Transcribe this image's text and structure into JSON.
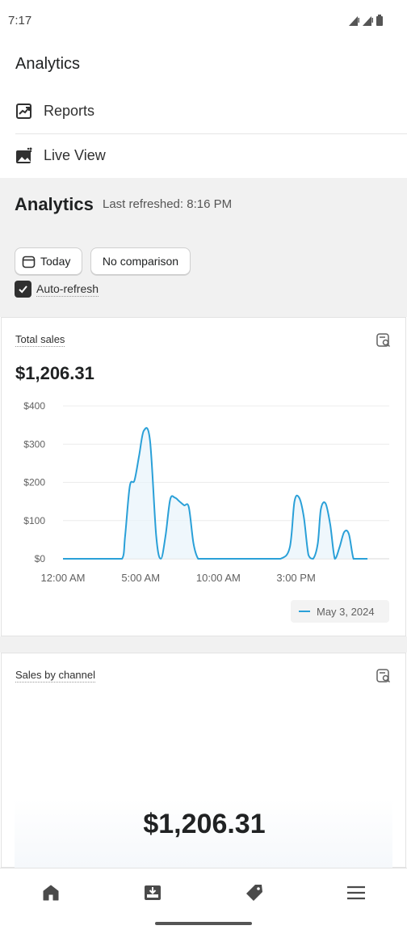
{
  "status_bar": {
    "time": "7:17"
  },
  "nav": {
    "title": "Analytics",
    "items": [
      {
        "label": "Reports",
        "icon": "reports-icon"
      },
      {
        "label": "Live View",
        "icon": "live-view-icon"
      }
    ]
  },
  "header": {
    "title": "Analytics",
    "last_refreshed": "Last refreshed: 8:16 PM",
    "date_button": "Today",
    "comparison_button": "No comparison",
    "auto_refresh_label": "Auto-refresh",
    "auto_refresh_checked": true
  },
  "total_sales_card": {
    "title": "Total sales",
    "value": "$1,206.31",
    "legend": "May 3, 2024"
  },
  "chart_data": {
    "type": "area",
    "y_ticks": [
      "$400",
      "$300",
      "$200",
      "$100",
      "$0"
    ],
    "x_ticks": [
      "12:00 AM",
      "5:00 AM",
      "10:00 AM",
      "3:00 PM"
    ],
    "ylim": [
      0,
      400
    ],
    "xlim": [
      0,
      21
    ],
    "grid": true,
    "legend_position": "bottom-right",
    "series": [
      {
        "name": "May 3, 2024",
        "color": "#2aa0d8",
        "x": [
          0,
          1,
          2,
          3,
          3.8,
          4.0,
          4.3,
          4.6,
          4.9,
          5.2,
          5.6,
          6.0,
          6.3,
          6.6,
          6.9,
          7.2,
          7.5,
          7.8,
          8.1,
          8.4,
          8.7,
          9.0,
          9.3,
          9.6,
          10,
          11,
          12,
          13,
          14,
          14.6,
          14.9,
          15.2,
          15.5,
          15.8,
          16.1,
          16.4,
          16.6,
          16.9,
          17.2,
          17.5,
          17.8,
          18.1,
          18.4,
          18.7,
          19.0,
          19.3,
          19.6
        ],
        "values": [
          0,
          0,
          0,
          0,
          0,
          60,
          190,
          205,
          270,
          335,
          310,
          60,
          0,
          60,
          155,
          160,
          150,
          140,
          135,
          40,
          0,
          0,
          0,
          0,
          0,
          0,
          0,
          0,
          0,
          30,
          150,
          160,
          110,
          10,
          0,
          40,
          130,
          145,
          90,
          0,
          30,
          70,
          65,
          0,
          0,
          0,
          0
        ]
      }
    ]
  },
  "channel_card": {
    "title": "Sales by channel",
    "total": "$1,206.31"
  },
  "bottom_nav": [
    "home-icon",
    "orders-icon",
    "products-icon",
    "menu-icon"
  ]
}
